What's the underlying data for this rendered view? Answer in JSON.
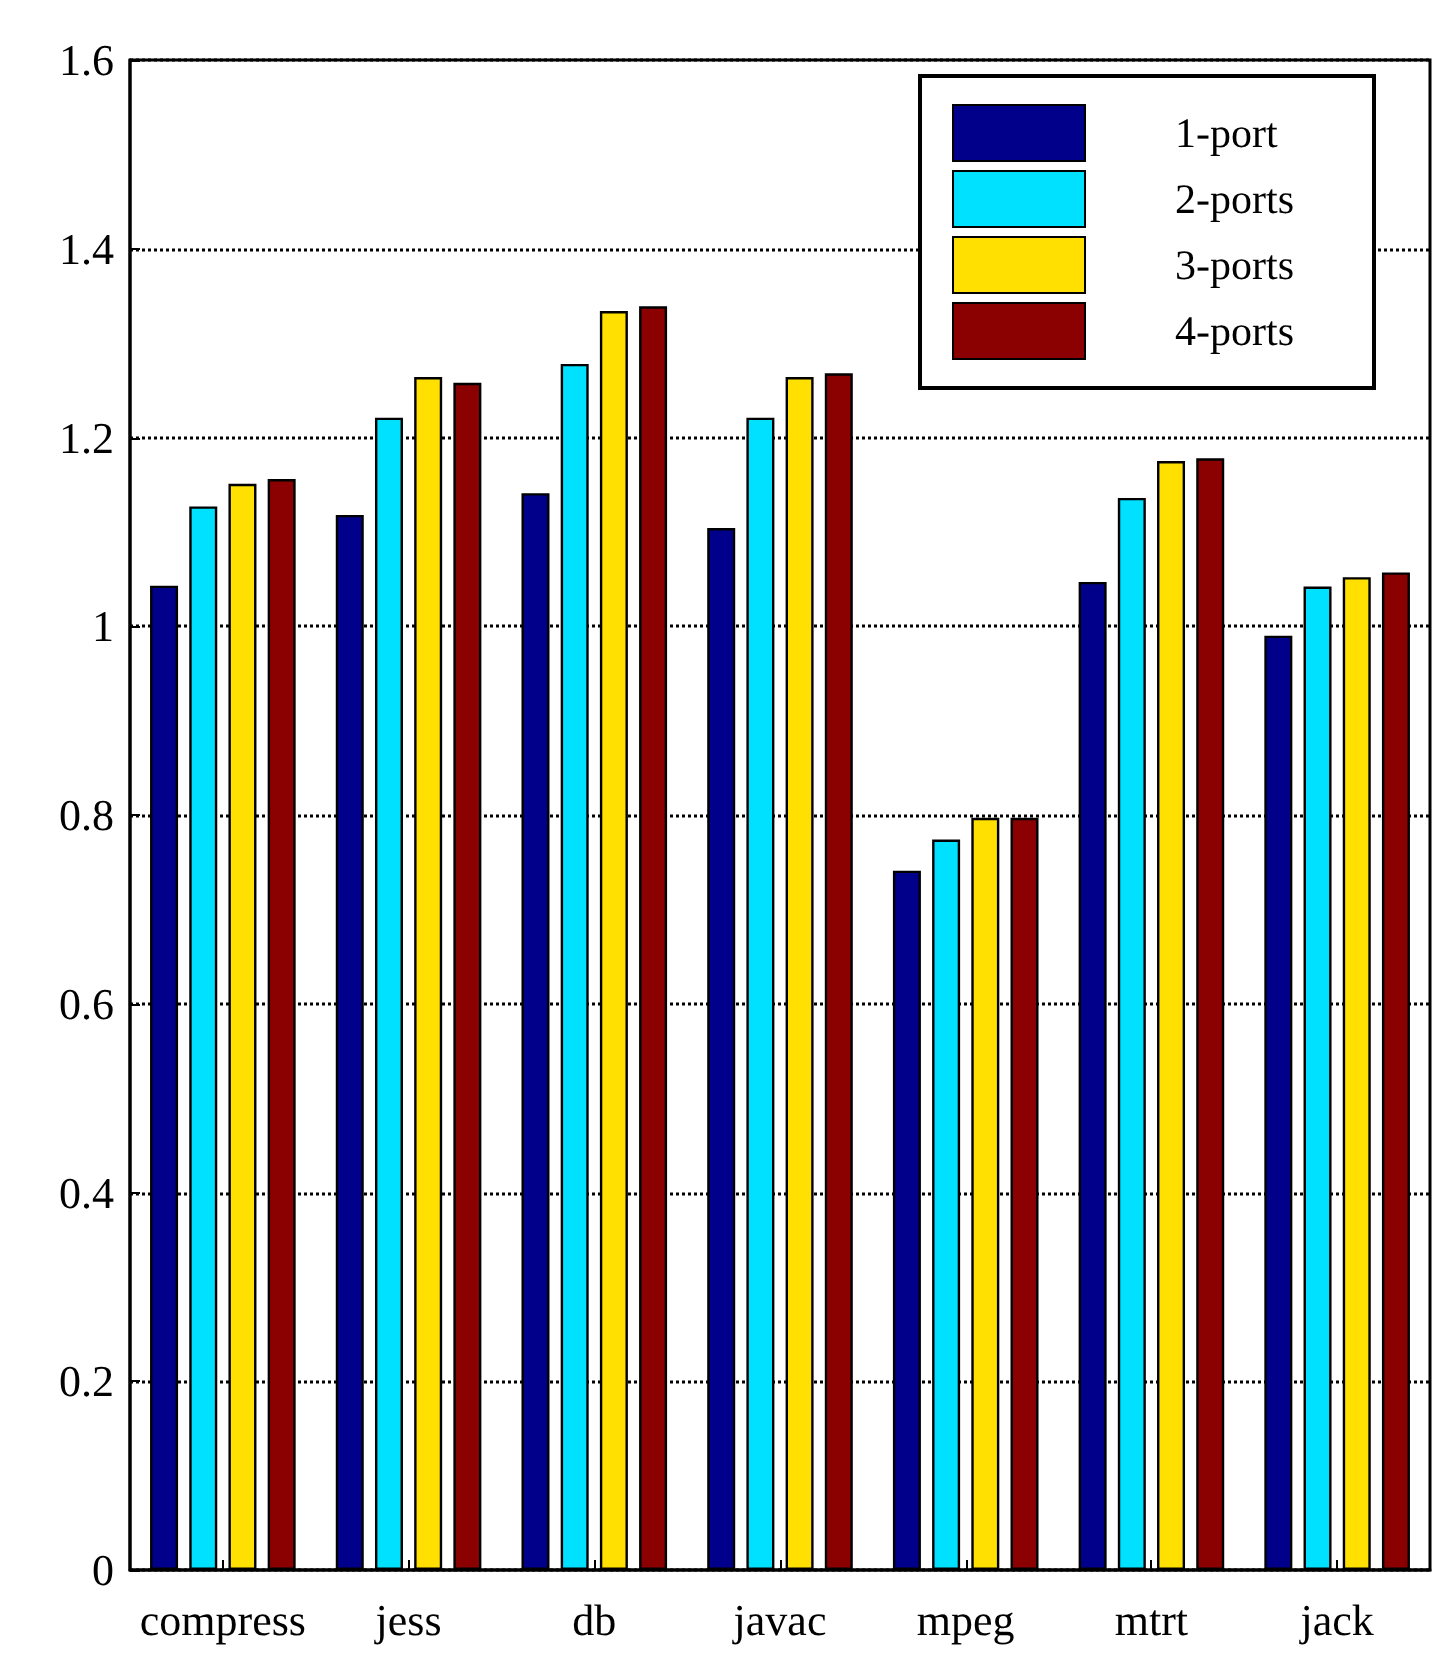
{
  "chart_data": {
    "type": "bar",
    "categories": [
      "compress",
      "jess",
      "db",
      "javac",
      "mpeg",
      "mtrt",
      "jack"
    ],
    "series": [
      {
        "name": "1-port",
        "color": "#00008b",
        "values": [
          1.043,
          1.118,
          1.141,
          1.104,
          0.741,
          1.047,
          0.99
        ]
      },
      {
        "name": "2-ports",
        "color": "#00e0ff",
        "values": [
          1.127,
          1.221,
          1.278,
          1.221,
          0.774,
          1.136,
          1.042
        ]
      },
      {
        "name": "3-ports",
        "color": "#ffe000",
        "values": [
          1.151,
          1.264,
          1.334,
          1.264,
          0.797,
          1.175,
          1.052
        ]
      },
      {
        "name": "4-ports",
        "color": "#8b0000",
        "values": [
          1.156,
          1.258,
          1.339,
          1.268,
          0.797,
          1.178,
          1.057
        ]
      }
    ],
    "ylim": [
      0,
      1.6
    ],
    "yticks": [
      0,
      0.2,
      0.4,
      0.6,
      0.8,
      1,
      1.2,
      1.4,
      1.6
    ],
    "grid": "y",
    "legend": "top right"
  }
}
